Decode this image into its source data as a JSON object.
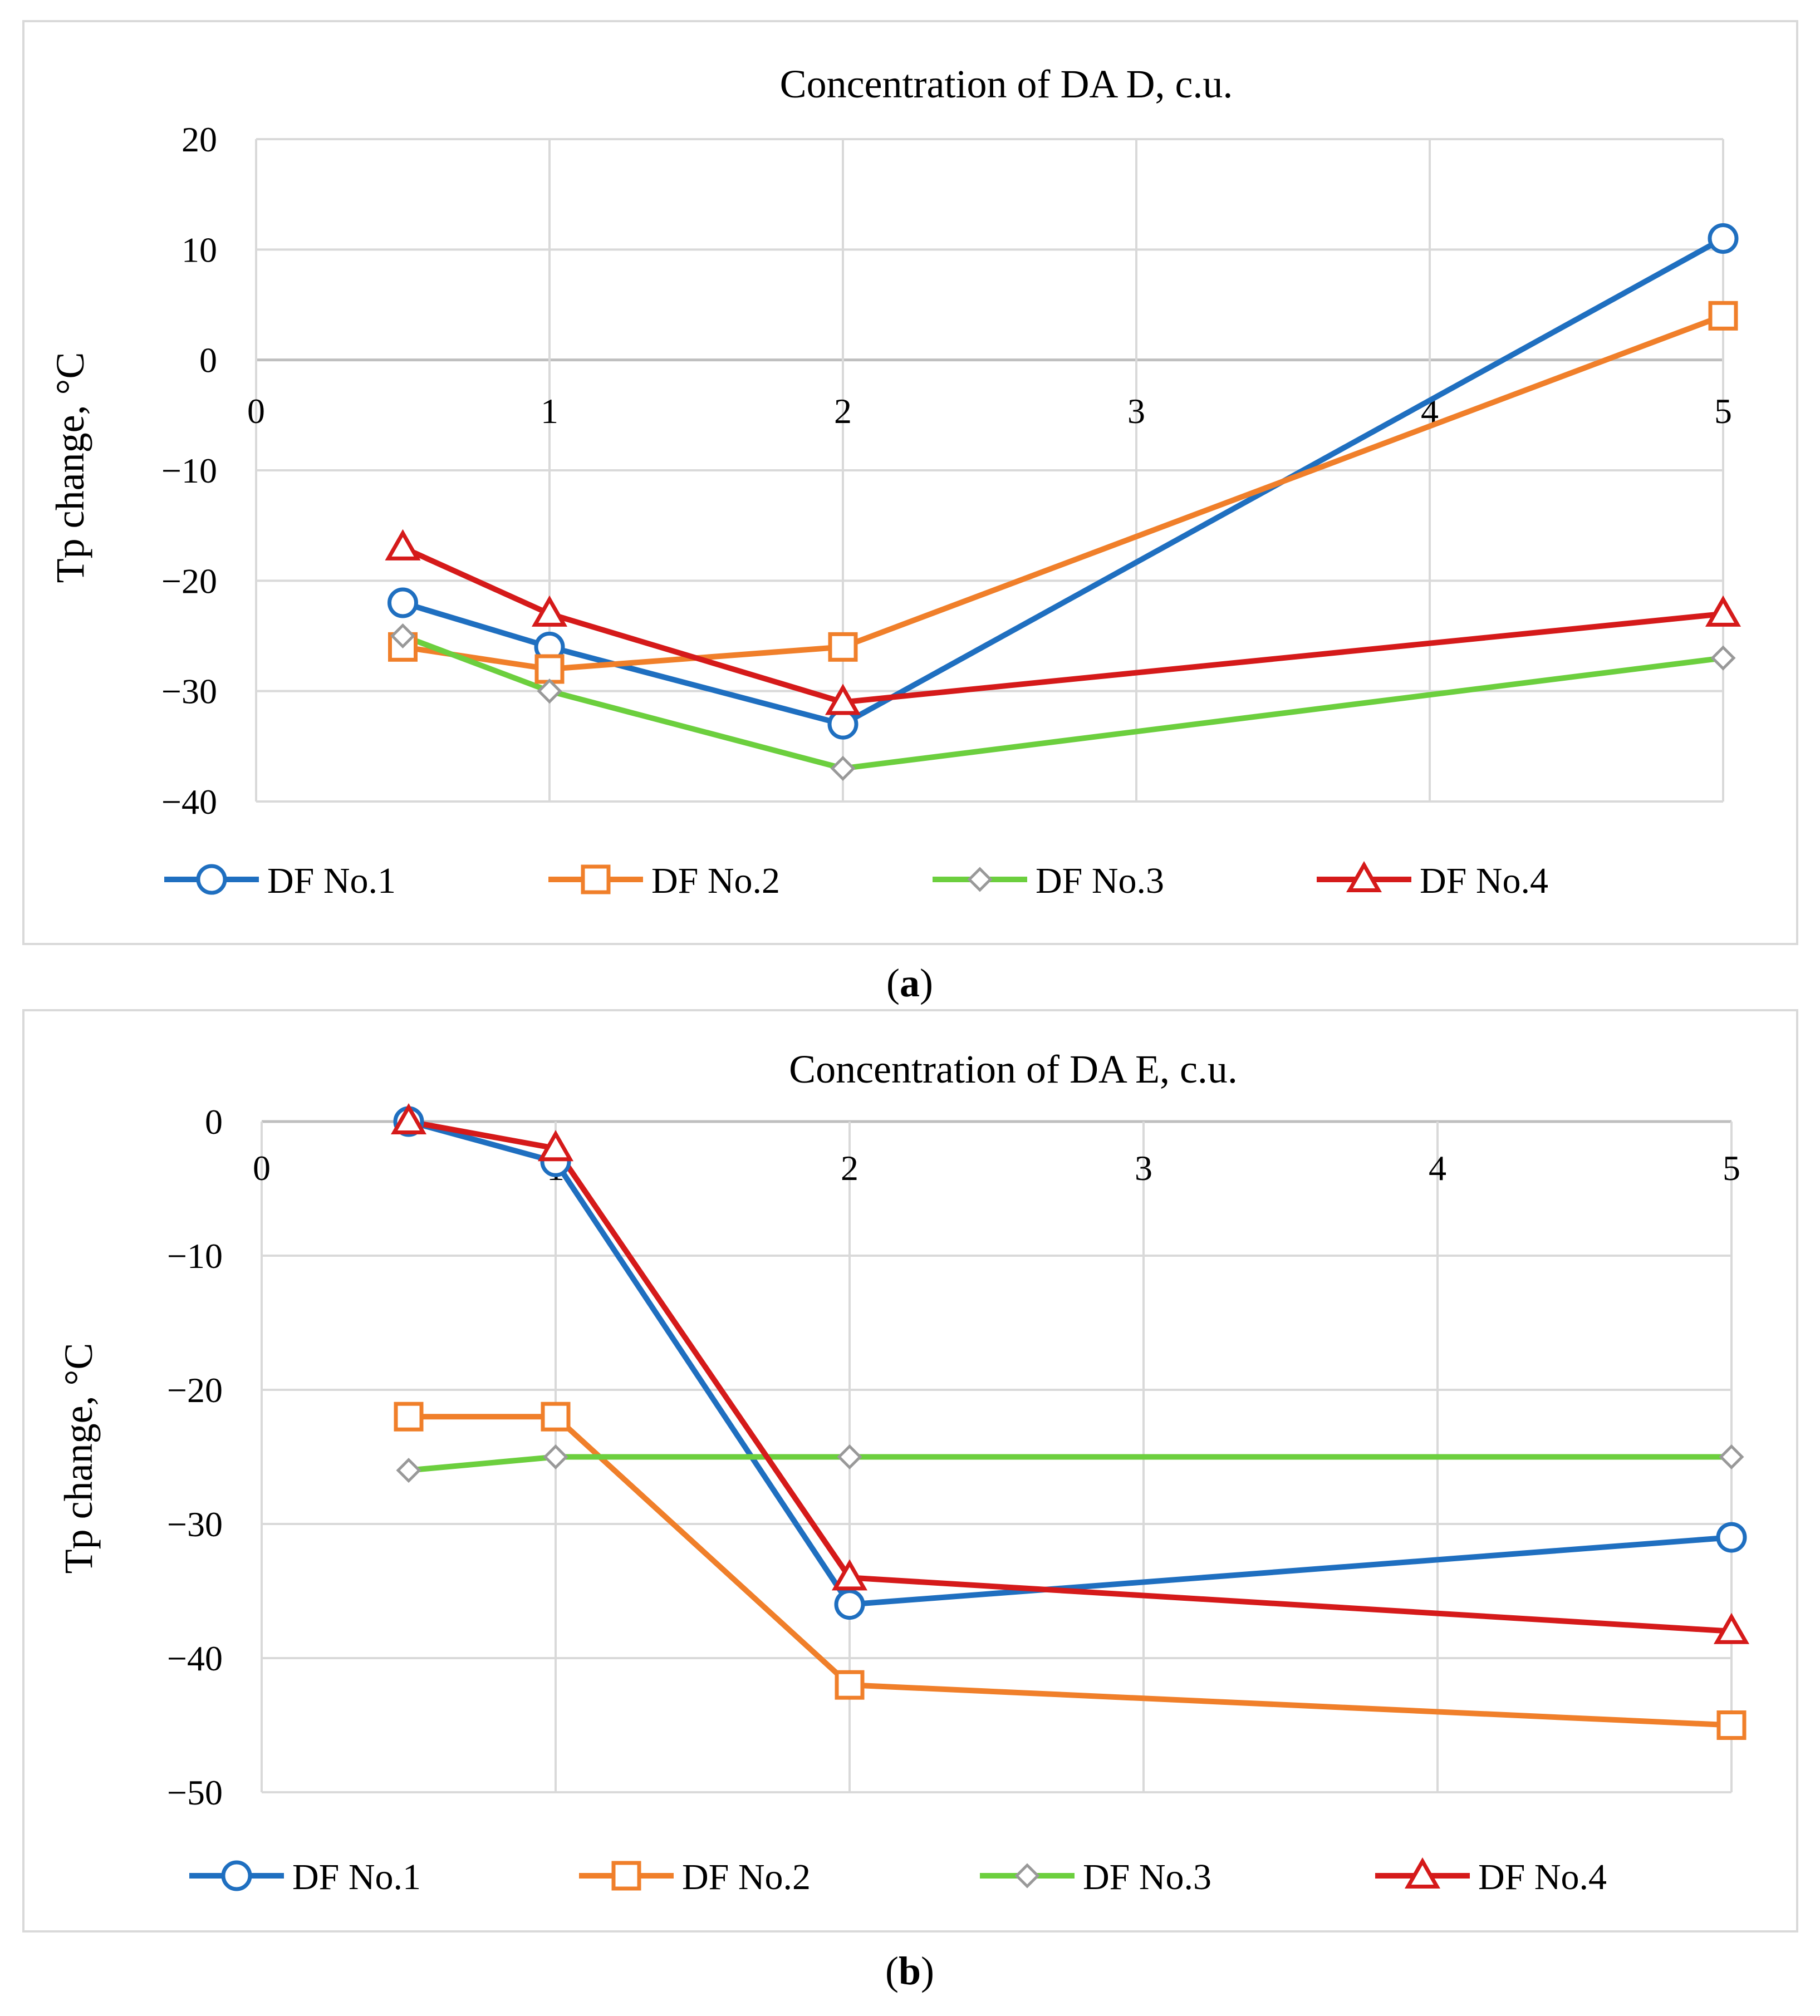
{
  "chart_data": [
    {
      "type": "line",
      "panel_label": "a",
      "title": "Concentration of DA D, c.u.",
      "xlabel": "",
      "ylabel": "Tp change, °C",
      "xlim": [
        0,
        5
      ],
      "ylim": [
        -40,
        20
      ],
      "xticks": [
        "0",
        "1",
        "2",
        "3",
        "4",
        "5"
      ],
      "yticks": [
        "20",
        "10",
        "0",
        "−10",
        "−20",
        "−30",
        "−40"
      ],
      "grid": true,
      "legend_position": "bottom",
      "x": [
        0.5,
        1,
        2,
        5
      ],
      "series": [
        {
          "name": "DF No.1",
          "values": [
            -22,
            -26,
            -33,
            11
          ],
          "color": "#1f6fc0",
          "marker": "circle"
        },
        {
          "name": "DF No.2",
          "values": [
            -26,
            -28,
            -26,
            4
          ],
          "color": "#f07f2a",
          "marker": "square"
        },
        {
          "name": "DF No.3",
          "values": [
            -25,
            -30,
            -37,
            -27
          ],
          "color": "#6ccf3e",
          "marker": "diamond"
        },
        {
          "name": "DF No.4",
          "values": [
            -17,
            -23,
            -31,
            -23
          ],
          "color": "#d51a1a",
          "marker": "triangle"
        }
      ]
    },
    {
      "type": "line",
      "panel_label": "b",
      "title": "Concentration of DA E, c.u.",
      "xlabel": "",
      "ylabel": "Tp change, °C",
      "xlim": [
        0,
        5
      ],
      "ylim": [
        -50,
        0
      ],
      "xticks": [
        "0",
        "1",
        "2",
        "3",
        "4",
        "5"
      ],
      "yticks": [
        "0",
        "−10",
        "−20",
        "−30",
        "−40",
        "−50"
      ],
      "grid": true,
      "legend_position": "bottom",
      "x": [
        0.5,
        1,
        2,
        5
      ],
      "series": [
        {
          "name": "DF No.1",
          "values": [
            0,
            -3,
            -36,
            -31
          ],
          "color": "#1f6fc0",
          "marker": "circle"
        },
        {
          "name": "DF No.2",
          "values": [
            -22,
            -22,
            -42,
            -45
          ],
          "color": "#f07f2a",
          "marker": "square"
        },
        {
          "name": "DF No.3",
          "values": [
            -26,
            -25,
            -25,
            -25
          ],
          "color": "#6ccf3e",
          "marker": "diamond"
        },
        {
          "name": "DF No.4",
          "values": [
            0,
            -2,
            -34,
            -38
          ],
          "color": "#d51a1a",
          "marker": "triangle"
        }
      ]
    }
  ]
}
